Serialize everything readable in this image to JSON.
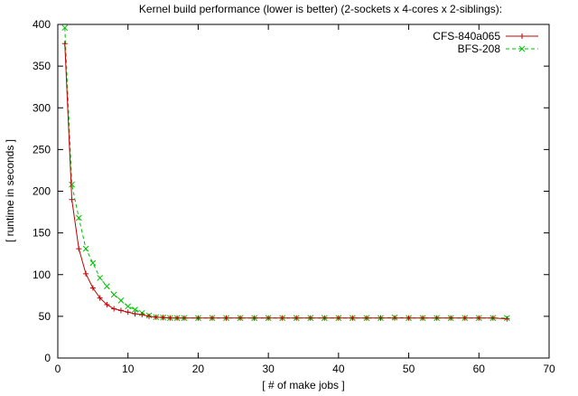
{
  "chart_data": {
    "type": "line",
    "title": "Kernel build performance (lower is better) (2-sockets x 4-cores x 2-siblings):",
    "xlabel": "[ # of make jobs ]",
    "ylabel": "[ runtime in seconds ]",
    "xlim": [
      0,
      70
    ],
    "ylim": [
      0,
      400
    ],
    "xticks": [
      0,
      10,
      20,
      30,
      40,
      50,
      60,
      70
    ],
    "yticks": [
      0,
      50,
      100,
      150,
      200,
      250,
      300,
      350,
      400
    ],
    "grid": false,
    "legend_position": "top-right",
    "series": [
      {
        "name": "CFS-840a065",
        "color": "#c00000",
        "marker": "plus",
        "line_style": "solid",
        "points": [
          [
            1,
            377
          ],
          [
            2,
            190
          ],
          [
            3,
            131
          ],
          [
            4,
            101
          ],
          [
            5,
            84
          ],
          [
            6,
            72
          ],
          [
            7,
            64
          ],
          [
            8,
            59
          ],
          [
            9,
            57
          ],
          [
            10,
            55
          ],
          [
            11,
            53
          ],
          [
            12,
            52
          ],
          [
            13,
            50
          ],
          [
            14,
            49
          ],
          [
            15,
            48.5
          ],
          [
            16,
            48
          ],
          [
            17,
            48
          ],
          [
            18,
            48
          ],
          [
            20,
            48
          ],
          [
            22,
            48
          ],
          [
            24,
            48
          ],
          [
            26,
            48
          ],
          [
            28,
            48
          ],
          [
            30,
            48
          ],
          [
            32,
            48
          ],
          [
            34,
            48
          ],
          [
            36,
            48
          ],
          [
            38,
            48
          ],
          [
            40,
            48
          ],
          [
            42,
            48
          ],
          [
            44,
            48
          ],
          [
            46,
            48
          ],
          [
            48,
            48
          ],
          [
            50,
            48
          ],
          [
            52,
            48
          ],
          [
            54,
            48
          ],
          [
            56,
            48
          ],
          [
            58,
            48
          ],
          [
            60,
            48
          ],
          [
            62,
            48
          ],
          [
            64,
            47
          ]
        ]
      },
      {
        "name": "BFS-208",
        "color": "#00c000",
        "marker": "cross",
        "line_style": "dashed",
        "points": [
          [
            1,
            396
          ],
          [
            2,
            208
          ],
          [
            3,
            168
          ],
          [
            4,
            131
          ],
          [
            5,
            114
          ],
          [
            6,
            96
          ],
          [
            7,
            86
          ],
          [
            8,
            76
          ],
          [
            9,
            69
          ],
          [
            10,
            62
          ],
          [
            11,
            58
          ],
          [
            12,
            54
          ],
          [
            13,
            51
          ],
          [
            14,
            49
          ],
          [
            15,
            48.5
          ],
          [
            16,
            48
          ],
          [
            17,
            48
          ],
          [
            18,
            48
          ],
          [
            20,
            48
          ],
          [
            22,
            48
          ],
          [
            24,
            48
          ],
          [
            26,
            48
          ],
          [
            28,
            48
          ],
          [
            30,
            48
          ],
          [
            32,
            48
          ],
          [
            34,
            48
          ],
          [
            36,
            48
          ],
          [
            38,
            48
          ],
          [
            40,
            48
          ],
          [
            42,
            48
          ],
          [
            44,
            48
          ],
          [
            46,
            48
          ],
          [
            48,
            48.5
          ],
          [
            50,
            48
          ],
          [
            52,
            48
          ],
          [
            54,
            48
          ],
          [
            56,
            48
          ],
          [
            58,
            48
          ],
          [
            60,
            48
          ],
          [
            62,
            48
          ],
          [
            64,
            48
          ]
        ]
      }
    ]
  }
}
